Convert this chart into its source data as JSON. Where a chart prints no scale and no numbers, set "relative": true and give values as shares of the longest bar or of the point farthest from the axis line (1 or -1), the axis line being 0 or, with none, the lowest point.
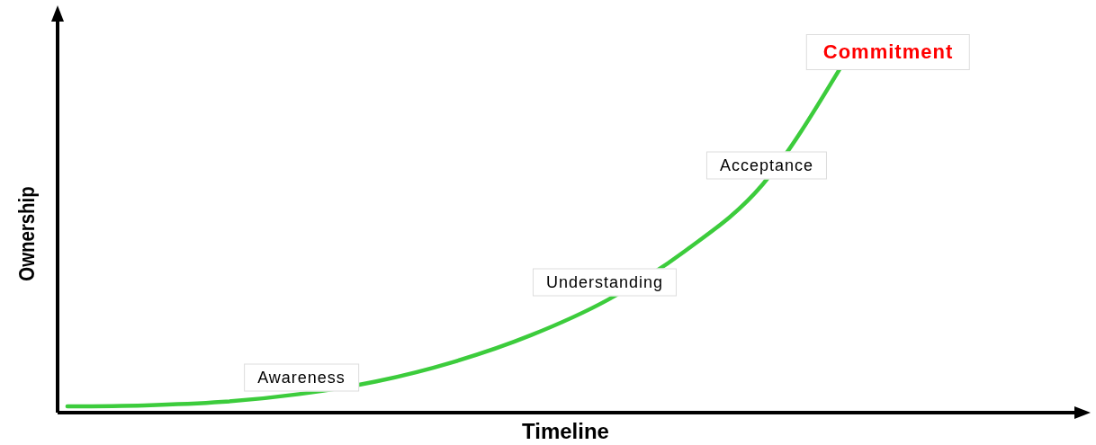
{
  "chart_data": {
    "type": "line",
    "relative": true,
    "xlabel": "Timeline",
    "ylabel": "Ownership",
    "categories": [
      null,
      null,
      null,
      null,
      null,
      null,
      null,
      null,
      null,
      null,
      null,
      null,
      null,
      null
    ],
    "series": [
      {
        "color": "#3ccc3c",
        "values": [
          0.013,
          0.016,
          0.026,
          0.049,
          0.086,
          0.143,
          0.221,
          0.325,
          0.468,
          0.662,
          1,
          null,
          null,
          null
        ]
      }
    ],
    "annotations": [
      "Awareness",
      "Understanding",
      "Acceptance",
      "Commitment"
    ],
    "marker": "none",
    "grid": false,
    "tick_labels": false
  }
}
